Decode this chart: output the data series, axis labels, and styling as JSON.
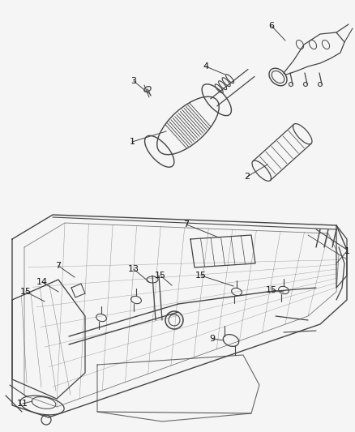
{
  "bg_color": "#f5f5f5",
  "line_color": "#444444",
  "fig_width": 4.39,
  "fig_height": 5.33,
  "dpi": 100
}
